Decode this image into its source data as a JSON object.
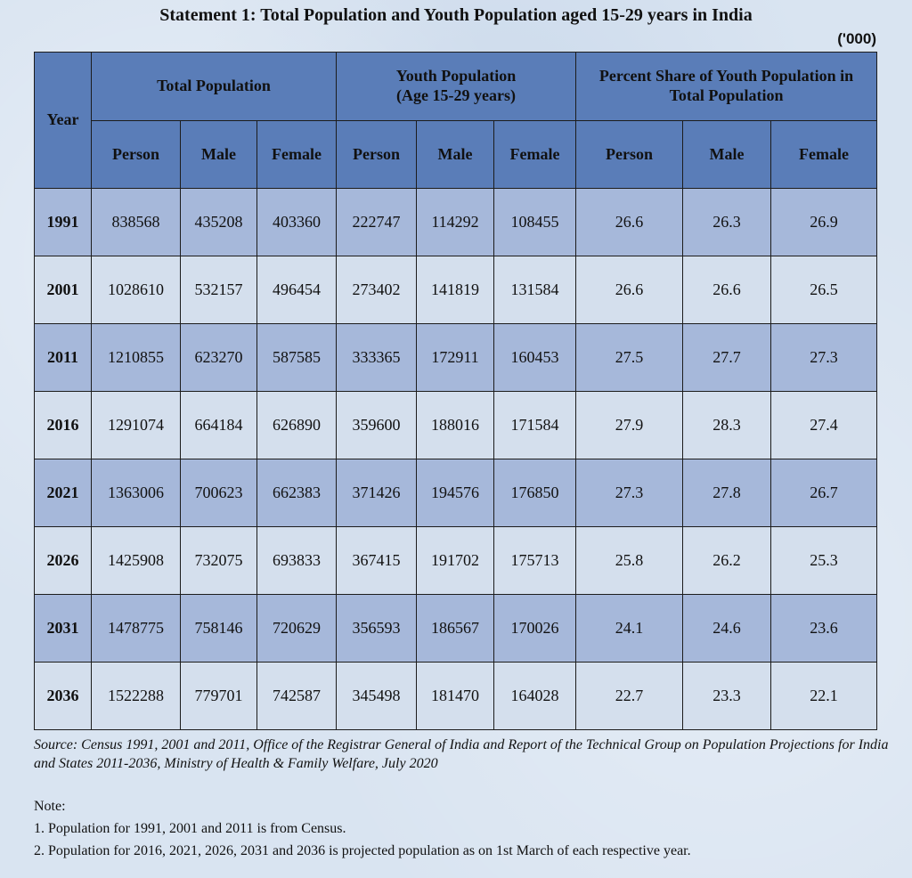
{
  "title": "Statement 1: Total Population and Youth Population aged 15-29 years in India",
  "unit": "('000)",
  "header": {
    "year": "Year",
    "groups": [
      "Total Population",
      "Youth Population (Age 15-29 years)",
      "Percent Share of Youth Population in Total Population"
    ],
    "subcols": [
      "Person",
      "Male",
      "Female",
      "Person",
      "Male",
      "Female",
      "Person",
      "Male",
      "Female"
    ]
  },
  "rows": [
    [
      "1991",
      "838568",
      "435208",
      "403360",
      "222747",
      "114292",
      "108455",
      "26.6",
      "26.3",
      "26.9"
    ],
    [
      "2001",
      "1028610",
      "532157",
      "496454",
      "273402",
      "141819",
      "131584",
      "26.6",
      "26.6",
      "26.5"
    ],
    [
      "2011",
      "1210855",
      "623270",
      "587585",
      "333365",
      "172911",
      "160453",
      "27.5",
      "27.7",
      "27.3"
    ],
    [
      "2016",
      "1291074",
      "664184",
      "626890",
      "359600",
      "188016",
      "171584",
      "27.9",
      "28.3",
      "27.4"
    ],
    [
      "2021",
      "1363006",
      "700623",
      "662383",
      "371426",
      "194576",
      "176850",
      "27.3",
      "27.8",
      "26.7"
    ],
    [
      "2026",
      "1425908",
      "732075",
      "693833",
      "367415",
      "191702",
      "175713",
      "25.8",
      "26.2",
      "25.3"
    ],
    [
      "2031",
      "1478775",
      "758146",
      "720629",
      "356593",
      "186567",
      "170026",
      "24.1",
      "24.6",
      "23.6"
    ],
    [
      "2036",
      "1522288",
      "779701",
      "742587",
      "345498",
      "181470",
      "164028",
      "22.7",
      "23.3",
      "22.1"
    ]
  ],
  "source": "Source: Census 1991, 2001 and 2011, Office of the Registrar General of India and Report of the Technical Group on Population Projections for India and States 2011-2036, Ministry of Health & Family Welfare, July 2020",
  "notes": {
    "heading": "Note:",
    "items": [
      "1. Population for 1991, 2001 and 2011 is from Census.",
      "2. Population for 2016, 2021, 2026, 2031 and 2036 is projected population as on 1st March of each respective year."
    ]
  }
}
